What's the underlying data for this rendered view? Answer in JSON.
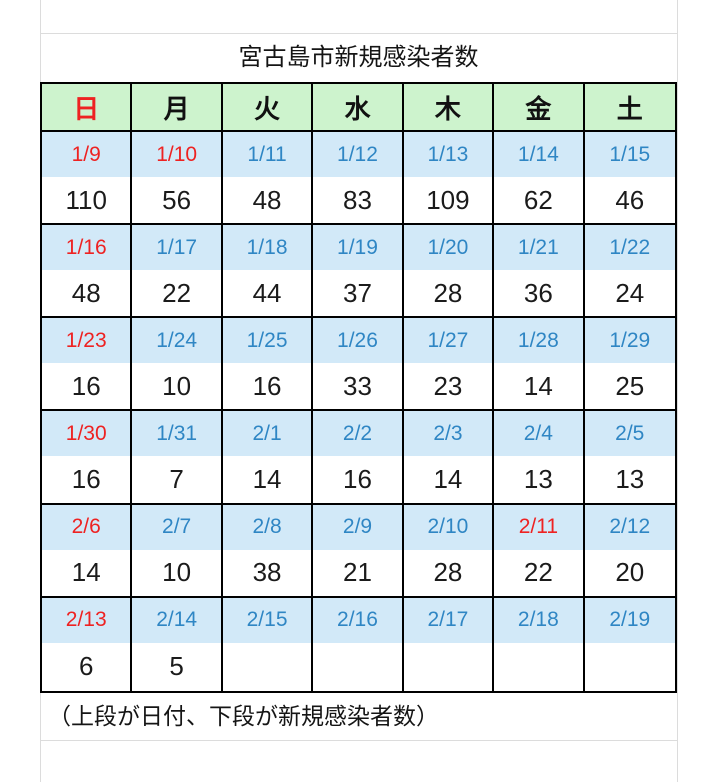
{
  "title": "宮古島市新規感染者数",
  "footnote": "（上段が日付、下段が新規感染者数）",
  "colors": {
    "header_bg": "#cdf3cd",
    "date_band_bg": "#d2e9f8",
    "table_border": "#000000",
    "sheet_gridline": "#dcdcdc"
  },
  "text_colors": {
    "red": "#ee2222",
    "blue": "#2f86c4",
    "black": "#111111"
  },
  "day_headers": [
    {
      "label": "日",
      "color": "red"
    },
    {
      "label": "月",
      "color": "black"
    },
    {
      "label": "火",
      "color": "black"
    },
    {
      "label": "水",
      "color": "black"
    },
    {
      "label": "木",
      "color": "black"
    },
    {
      "label": "金",
      "color": "black"
    },
    {
      "label": "土",
      "color": "black"
    }
  ],
  "weeks": [
    {
      "cells": [
        {
          "date": "1/9",
          "date_color": "red",
          "count": "110"
        },
        {
          "date": "1/10",
          "date_color": "red",
          "count": "56"
        },
        {
          "date": "1/11",
          "date_color": "blue",
          "count": "48"
        },
        {
          "date": "1/12",
          "date_color": "blue",
          "count": "83"
        },
        {
          "date": "1/13",
          "date_color": "blue",
          "count": "109"
        },
        {
          "date": "1/14",
          "date_color": "blue",
          "count": "62"
        },
        {
          "date": "1/15",
          "date_color": "blue",
          "count": "46"
        }
      ]
    },
    {
      "cells": [
        {
          "date": "1/16",
          "date_color": "red",
          "count": "48"
        },
        {
          "date": "1/17",
          "date_color": "blue",
          "count": "22"
        },
        {
          "date": "1/18",
          "date_color": "blue",
          "count": "44"
        },
        {
          "date": "1/19",
          "date_color": "blue",
          "count": "37"
        },
        {
          "date": "1/20",
          "date_color": "blue",
          "count": "28"
        },
        {
          "date": "1/21",
          "date_color": "blue",
          "count": "36"
        },
        {
          "date": "1/22",
          "date_color": "blue",
          "count": "24"
        }
      ]
    },
    {
      "cells": [
        {
          "date": "1/23",
          "date_color": "red",
          "count": "16"
        },
        {
          "date": "1/24",
          "date_color": "blue",
          "count": "10"
        },
        {
          "date": "1/25",
          "date_color": "blue",
          "count": "16"
        },
        {
          "date": "1/26",
          "date_color": "blue",
          "count": "33"
        },
        {
          "date": "1/27",
          "date_color": "blue",
          "count": "23"
        },
        {
          "date": "1/28",
          "date_color": "blue",
          "count": "14"
        },
        {
          "date": "1/29",
          "date_color": "blue",
          "count": "25"
        }
      ]
    },
    {
      "cells": [
        {
          "date": "1/30",
          "date_color": "red",
          "count": "16"
        },
        {
          "date": "1/31",
          "date_color": "blue",
          "count": "7"
        },
        {
          "date": "2/1",
          "date_color": "blue",
          "count": "14"
        },
        {
          "date": "2/2",
          "date_color": "blue",
          "count": "16"
        },
        {
          "date": "2/3",
          "date_color": "blue",
          "count": "14"
        },
        {
          "date": "2/4",
          "date_color": "blue",
          "count": "13"
        },
        {
          "date": "2/5",
          "date_color": "blue",
          "count": "13"
        }
      ]
    },
    {
      "cells": [
        {
          "date": "2/6",
          "date_color": "red",
          "count": "14"
        },
        {
          "date": "2/7",
          "date_color": "blue",
          "count": "10"
        },
        {
          "date": "2/8",
          "date_color": "blue",
          "count": "38"
        },
        {
          "date": "2/9",
          "date_color": "blue",
          "count": "21"
        },
        {
          "date": "2/10",
          "date_color": "blue",
          "count": "28"
        },
        {
          "date": "2/11",
          "date_color": "red",
          "count": "22"
        },
        {
          "date": "2/12",
          "date_color": "blue",
          "count": "20"
        }
      ]
    },
    {
      "cells": [
        {
          "date": "2/13",
          "date_color": "red",
          "count": "6"
        },
        {
          "date": "2/14",
          "date_color": "blue",
          "count": "5"
        },
        {
          "date": "2/15",
          "date_color": "blue",
          "count": ""
        },
        {
          "date": "2/16",
          "date_color": "blue",
          "count": ""
        },
        {
          "date": "2/17",
          "date_color": "blue",
          "count": ""
        },
        {
          "date": "2/18",
          "date_color": "blue",
          "count": ""
        },
        {
          "date": "2/19",
          "date_color": "blue",
          "count": ""
        }
      ]
    }
  ],
  "chart_data": {
    "type": "table",
    "title": "宮古島市新規感染者数",
    "columns": [
      "日",
      "月",
      "火",
      "水",
      "木",
      "金",
      "土"
    ],
    "x": [
      "1/9",
      "1/10",
      "1/11",
      "1/12",
      "1/13",
      "1/14",
      "1/15",
      "1/16",
      "1/17",
      "1/18",
      "1/19",
      "1/20",
      "1/21",
      "1/22",
      "1/23",
      "1/24",
      "1/25",
      "1/26",
      "1/27",
      "1/28",
      "1/29",
      "1/30",
      "1/31",
      "2/1",
      "2/2",
      "2/3",
      "2/4",
      "2/5",
      "2/6",
      "2/7",
      "2/8",
      "2/9",
      "2/10",
      "2/11",
      "2/12",
      "2/13",
      "2/14",
      "2/15",
      "2/16",
      "2/17",
      "2/18",
      "2/19"
    ],
    "values": [
      110,
      56,
      48,
      83,
      109,
      62,
      46,
      48,
      22,
      44,
      37,
      28,
      36,
      24,
      16,
      10,
      16,
      33,
      23,
      14,
      25,
      16,
      7,
      14,
      16,
      14,
      13,
      13,
      14,
      10,
      38,
      21,
      28,
      22,
      20,
      6,
      5,
      null,
      null,
      null,
      null,
      null
    ],
    "annotations": [
      "（上段が日付、下段が新規感染者数）"
    ]
  }
}
